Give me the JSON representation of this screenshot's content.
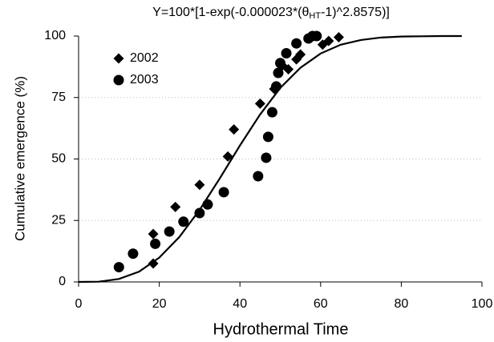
{
  "chart_data": {
    "type": "scatter",
    "title": [
      "Y=100*[1-exp(-0.000023*(θ",
      "HT",
      "-1)^2.8575)]"
    ],
    "x_label": "Hydrothermal Time",
    "y_label": "Cumulative emergence (%)",
    "xlim": [
      0,
      100
    ],
    "xticks": [
      0,
      20,
      40,
      60,
      80,
      100
    ],
    "ylim": [
      0,
      100
    ],
    "yticks": [
      0,
      25,
      50,
      75,
      100
    ],
    "grid": true,
    "legend": "upper-left",
    "series": [
      {
        "name": "2002",
        "color": "#000000",
        "marker": "diamond",
        "x": [
          18.5,
          18.5,
          24,
          30,
          37,
          38.5,
          45,
          48.5,
          50.5,
          52,
          54,
          55,
          58,
          60.5,
          62,
          64.5
        ],
        "values": [
          7.5,
          19.5,
          30.5,
          39.5,
          51,
          62,
          72.5,
          78.5,
          88,
          86.5,
          90.5,
          92.5,
          100,
          96.5,
          98,
          99.5
        ]
      },
      {
        "name": "2003",
        "color": "#000000",
        "marker": "circle",
        "x": [
          10,
          13.5,
          19,
          22.5,
          26,
          30,
          32,
          36,
          44.5,
          46.5,
          47,
          48,
          49,
          49.5,
          50,
          51.5,
          54,
          57,
          58,
          59
        ],
        "values": [
          6,
          11.5,
          15.5,
          20.5,
          24.5,
          28,
          31.5,
          36.5,
          43,
          50.5,
          59,
          69,
          79.5,
          85,
          89,
          93,
          97,
          99,
          100,
          100
        ]
      },
      {
        "color": "#000000",
        "marker": "line",
        "x": [
          0,
          5,
          10,
          15,
          20,
          25,
          30,
          35,
          40,
          45,
          50,
          55,
          60,
          65,
          70,
          75,
          80,
          85,
          90,
          95
        ],
        "values": [
          0,
          0.1,
          1.2,
          4.2,
          9.9,
          18.3,
          29.3,
          42.1,
          55.5,
          68.1,
          78.9,
          87.1,
          92.9,
          96.5,
          98.4,
          99.4,
          99.8,
          99.9,
          100,
          100
        ]
      }
    ]
  }
}
